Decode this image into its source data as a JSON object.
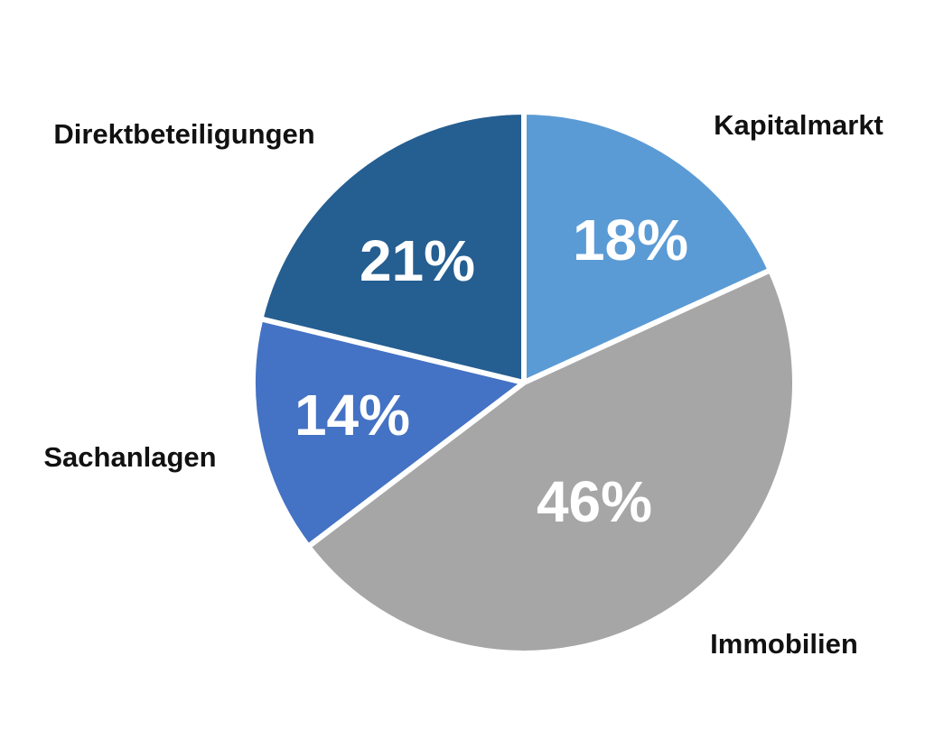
{
  "chart_data": {
    "type": "pie",
    "categories": [
      "Kapitalmarkt",
      "Immobilien",
      "Sachanlagen",
      "Direktbeteiligungen"
    ],
    "values": [
      18,
      46,
      14,
      21
    ],
    "value_labels": [
      "18%",
      "46%",
      "14%",
      "21%"
    ],
    "colors": [
      "#5b9bd5",
      "#a6a6a6",
      "#4472c4",
      "#255e91"
    ],
    "start_angle_deg": 0,
    "direction": "clockwise",
    "legend": "none"
  }
}
